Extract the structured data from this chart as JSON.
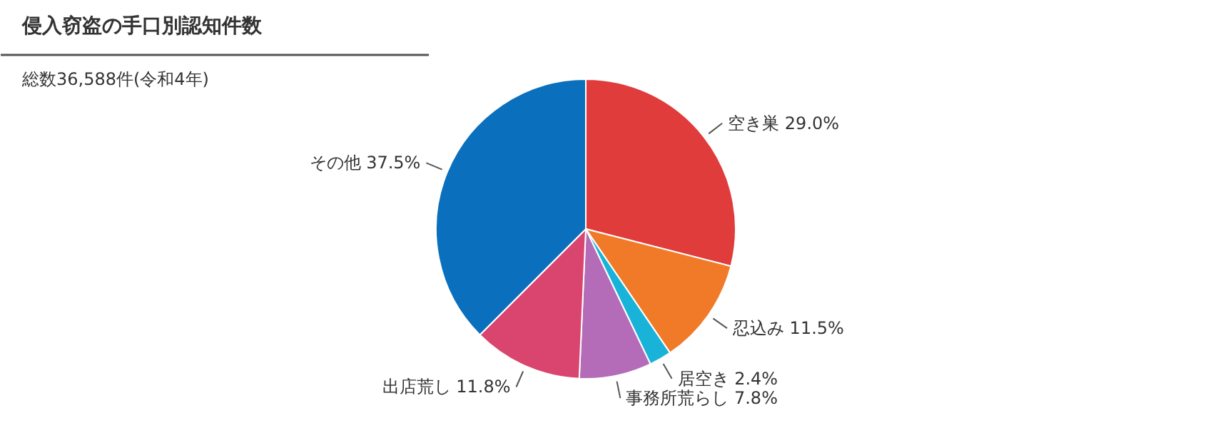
{
  "chart_data": {
    "type": "pie",
    "title": "侵入窃盗の手口別認知件数",
    "subtitle": "総数36,588件(令和4年)",
    "categories": [
      "空き巣",
      "忍込み",
      "居空き",
      "事務所荒らし",
      "出店荒し",
      "その他"
    ],
    "values": [
      29.0,
      11.5,
      2.4,
      7.8,
      11.8,
      37.5
    ],
    "value_labels": [
      "29.0%",
      "11.5%",
      "2.4%",
      "7.8%",
      "11.8%",
      "37.5%"
    ],
    "colors": [
      "#e03c3c",
      "#f07a28",
      "#19b3d9",
      "#b46cb8",
      "#d9456e",
      "#0a6fbd"
    ]
  }
}
